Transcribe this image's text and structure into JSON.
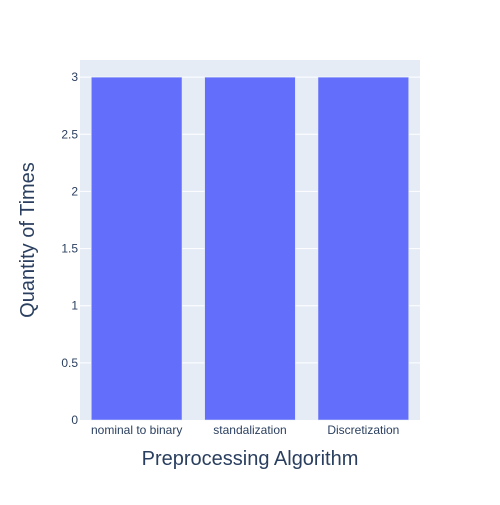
{
  "chart_data": {
    "type": "bar",
    "title": "",
    "xlabel": "Preprocessing Algorithm",
    "ylabel": "Quantity of Times",
    "categories": [
      "nominal to binary",
      "standalization",
      "Discretization"
    ],
    "values": [
      3,
      3,
      3
    ],
    "ylim": [
      0,
      3.15
    ],
    "yticks": [
      0,
      0.5,
      1,
      1.5,
      2,
      2.5,
      3
    ],
    "ytick_labels": [
      "0",
      "0.5",
      "1",
      "1.5",
      "2",
      "2.5",
      "3"
    ],
    "grid": true,
    "legend": "none",
    "colors": {
      "bar": "#636efa",
      "plot_bg": "#e5ecf6",
      "grid": "#ffffff",
      "text": "#2a3f5f",
      "tick_text": "#2a3f5f"
    }
  }
}
